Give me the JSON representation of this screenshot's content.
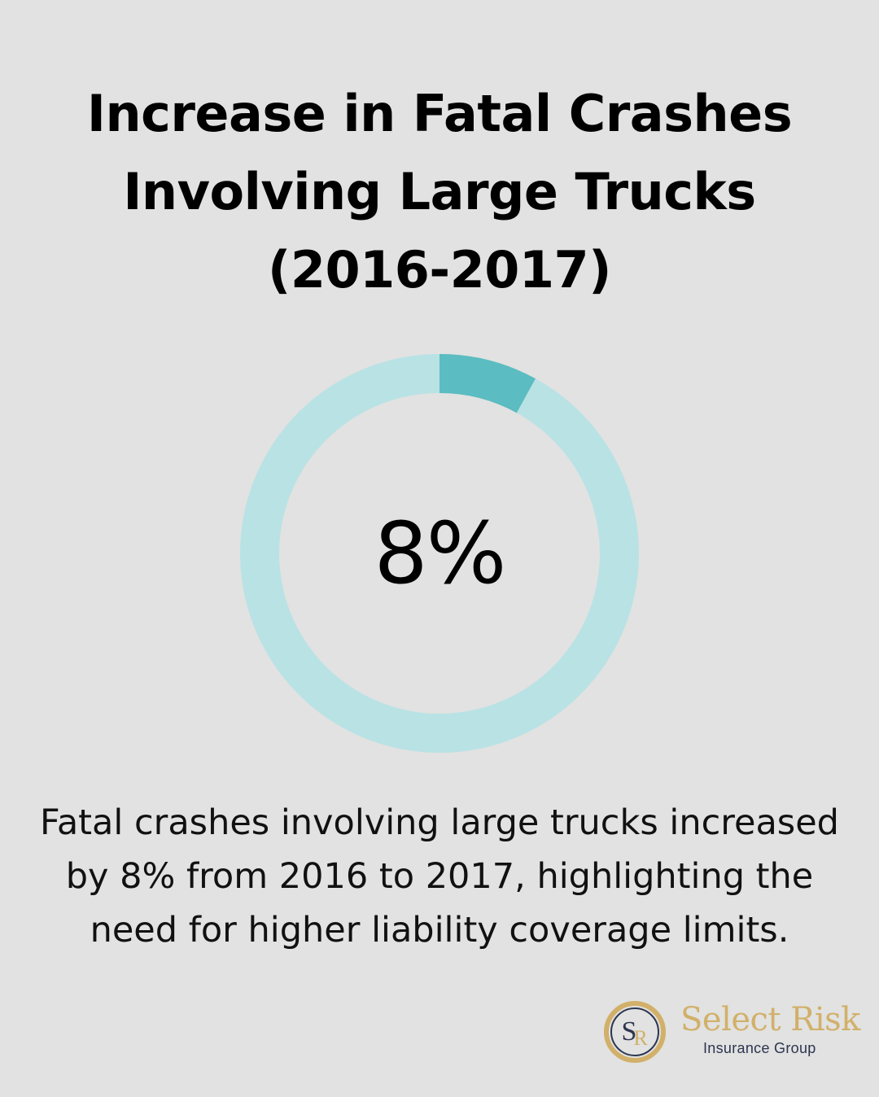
{
  "title_lines": [
    "Increase in Fatal Crashes",
    "Involving Large Trucks",
    "(2016-2017)"
  ],
  "chart_data": {
    "type": "pie",
    "style": "donut",
    "values": [
      8,
      92
    ],
    "center_label": "8%",
    "colors": [
      "#5bbcc1",
      "#b9e2e5"
    ]
  },
  "description_lines": [
    "Fatal crashes involving large trucks increased",
    "by 8% from 2016 to 2017, highlighting the",
    "need for higher liability coverage limits."
  ],
  "logo": {
    "monogram": "SR",
    "name": "Select Risk",
    "subtitle": "Insurance Group",
    "colors": {
      "gold": "#d2b06a",
      "navy": "#2d3550"
    }
  },
  "colors": {
    "background": "#e1e2e1",
    "text": "#000000"
  }
}
